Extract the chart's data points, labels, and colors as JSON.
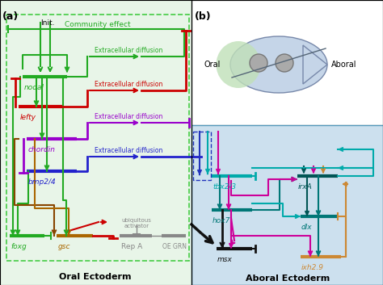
{
  "panel_a_bg": "#e8f5e8",
  "panel_b_bg": "#ffffff",
  "aboral_bg": "#cce0ee",
  "community_color": "#44cc44",
  "green": "#22aa22",
  "red": "#cc0000",
  "blue": "#2222cc",
  "purple": "#9900cc",
  "brown": "#884400",
  "dark_brown": "#aa6600",
  "gray": "#888888",
  "cyan": "#00aaaa",
  "magenta": "#cc0099",
  "teal": "#007777",
  "dark_teal": "#005555",
  "orange_tan": "#cc8833",
  "navy": "#2233bb",
  "black": "#111111",
  "community_label": "Community effect",
  "init_label": "Init.",
  "oral_label": "Oral Ectoderm",
  "aboral_label": "Aboral Ectoderm",
  "extracellular": "Extracellular diffusion",
  "ubiquitous": "ubiquitous\nactivator",
  "oe_grn": "OE GRN",
  "rep_a": "Rep A",
  "oral_word": "Oral",
  "aboral_word": "Aboral"
}
